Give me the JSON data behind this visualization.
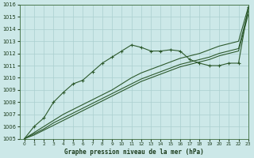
{
  "title": "Graphe pression niveau de la mer (hPa)",
  "background_color": "#cce8e8",
  "grid_color": "#aacfcf",
  "line_color": "#2d5a2d",
  "xlim": [
    -0.5,
    23
  ],
  "ylim": [
    1005,
    1016
  ],
  "xticks": [
    0,
    1,
    2,
    3,
    4,
    5,
    6,
    7,
    8,
    9,
    10,
    11,
    12,
    13,
    14,
    15,
    16,
    17,
    18,
    19,
    20,
    21,
    22,
    23
  ],
  "yticks": [
    1005,
    1006,
    1007,
    1008,
    1009,
    1010,
    1011,
    1012,
    1013,
    1014,
    1015,
    1016
  ],
  "series_marked_x": [
    0,
    1,
    2,
    3,
    4,
    5,
    6,
    7,
    8,
    9,
    10,
    11,
    12,
    13,
    14,
    15,
    16,
    17,
    18,
    19,
    20,
    21,
    22,
    23
  ],
  "series_marked_y": [
    1005.0,
    1006.0,
    1006.7,
    1008.0,
    1008.8,
    1009.5,
    1009.8,
    1010.5,
    1011.2,
    1011.7,
    1012.2,
    1012.7,
    1012.5,
    1012.2,
    1012.2,
    1012.3,
    1012.2,
    1011.5,
    1011.2,
    1011.0,
    1011.0,
    1011.2,
    1011.2,
    1015.8
  ],
  "series2_x": [
    0,
    1,
    2,
    3,
    4,
    5,
    6,
    7,
    8,
    9,
    10,
    11,
    12,
    13,
    14,
    15,
    16,
    17,
    18,
    19,
    20,
    21,
    22,
    23
  ],
  "series2_y": [
    1005.0,
    1005.5,
    1006.0,
    1006.5,
    1007.0,
    1007.4,
    1007.8,
    1008.2,
    1008.6,
    1009.0,
    1009.5,
    1010.0,
    1010.4,
    1010.7,
    1011.0,
    1011.3,
    1011.6,
    1011.8,
    1012.0,
    1012.3,
    1012.6,
    1012.8,
    1013.0,
    1015.8
  ],
  "series3_x": [
    0,
    1,
    2,
    3,
    4,
    5,
    6,
    7,
    8,
    9,
    10,
    11,
    12,
    13,
    14,
    15,
    16,
    17,
    18,
    19,
    20,
    21,
    22,
    23
  ],
  "series3_y": [
    1005.0,
    1005.4,
    1005.8,
    1006.3,
    1006.7,
    1007.1,
    1007.5,
    1007.9,
    1008.3,
    1008.7,
    1009.1,
    1009.5,
    1009.9,
    1010.2,
    1010.5,
    1010.8,
    1011.1,
    1011.3,
    1011.5,
    1011.7,
    1012.0,
    1012.2,
    1012.4,
    1015.5
  ],
  "series4_x": [
    0,
    1,
    2,
    3,
    4,
    5,
    6,
    7,
    8,
    9,
    10,
    11,
    12,
    13,
    14,
    15,
    16,
    17,
    18,
    19,
    20,
    21,
    22,
    23
  ],
  "series4_y": [
    1005.0,
    1005.3,
    1005.7,
    1006.1,
    1006.5,
    1006.9,
    1007.3,
    1007.7,
    1008.1,
    1008.5,
    1008.9,
    1009.3,
    1009.7,
    1010.0,
    1010.3,
    1010.6,
    1010.9,
    1011.1,
    1011.3,
    1011.5,
    1011.8,
    1012.0,
    1012.2,
    1015.2
  ]
}
